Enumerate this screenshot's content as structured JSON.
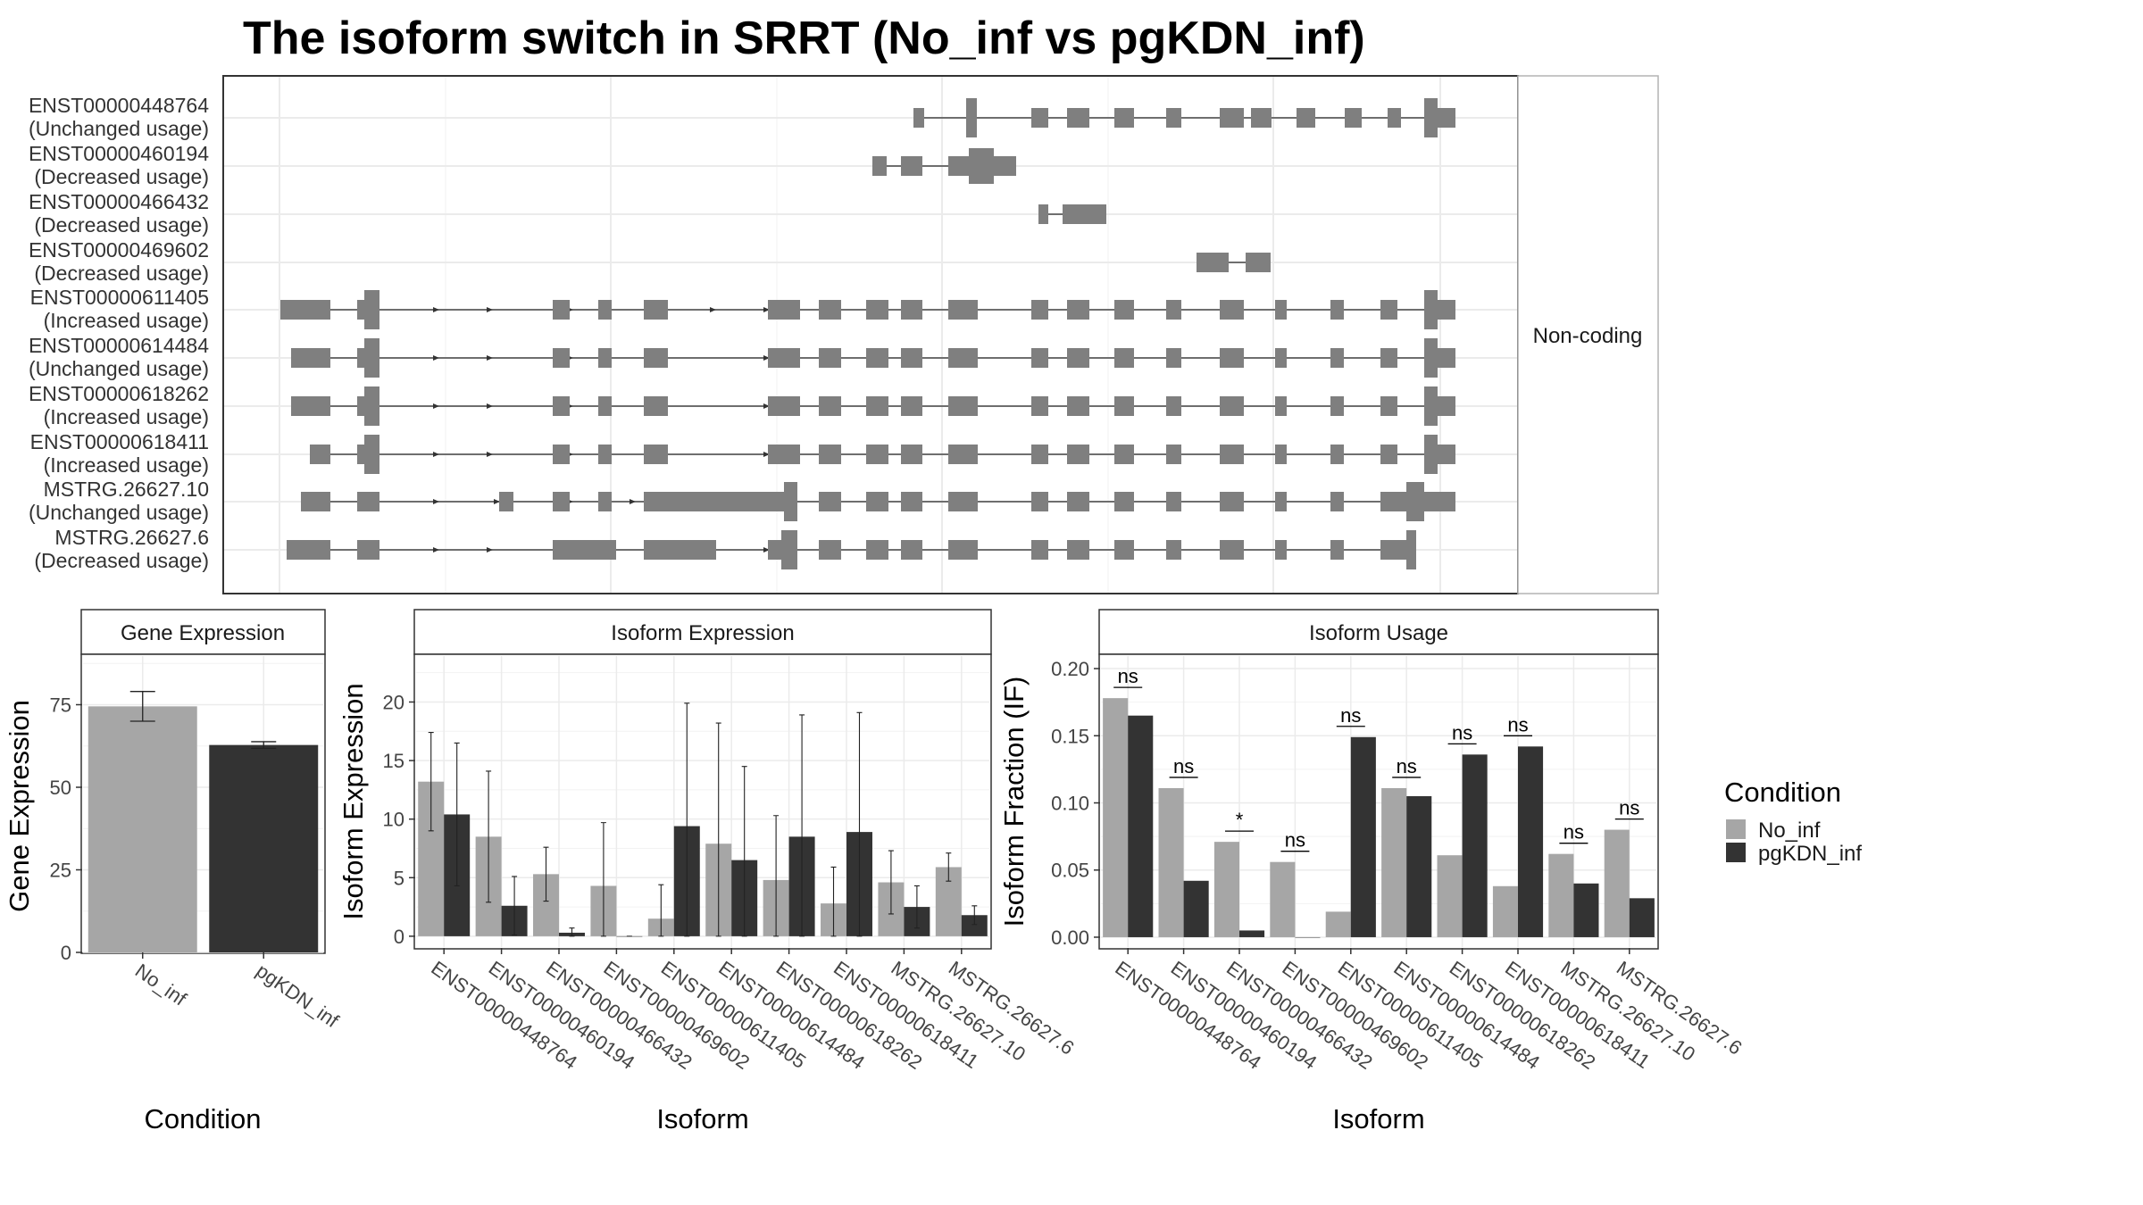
{
  "chart_data": [
    {
      "type": "gene-structure",
      "title": "The isoform switch in SRRT (No_inf vs pgKDN_inf)",
      "facet_label": "Non-coding",
      "isoforms": [
        {
          "id": "ENST00000448764",
          "usage": "(Unchanged usage)"
        },
        {
          "id": "ENST00000460194",
          "usage": "(Decreased usage)"
        },
        {
          "id": "ENST00000466432",
          "usage": "(Decreased usage)"
        },
        {
          "id": "ENST00000469602",
          "usage": "(Decreased usage)"
        },
        {
          "id": "ENST00000611405",
          "usage": "(Increased usage)"
        },
        {
          "id": "ENST00000614484",
          "usage": "(Unchanged usage)"
        },
        {
          "id": "ENST00000618262",
          "usage": "(Increased usage)"
        },
        {
          "id": "ENST00000618411",
          "usage": "(Increased usage)"
        },
        {
          "id": "MSTRG.26627.10",
          "usage": "(Unchanged usage)"
        },
        {
          "id": "MSTRG.26627.6",
          "usage": "(Decreased usage)"
        }
      ]
    },
    {
      "type": "bar",
      "title": "Gene Expression",
      "xlabel": "Condition",
      "ylabel": "Gene Expression",
      "categories": [
        "No_inf",
        "pgKDN_inf"
      ],
      "values": [
        74.5,
        62.8
      ],
      "errors": [
        4.5,
        1.0
      ],
      "ylim": [
        0,
        90
      ],
      "yticks": [
        "0",
        "25",
        "50",
        "75"
      ]
    },
    {
      "type": "bar",
      "title": "Isoform Expression",
      "xlabel": "Isoform",
      "ylabel": "Isoform Expression",
      "categories": [
        "ENST00000448764",
        "ENST00000460194",
        "ENST00000466432",
        "ENST00000469602",
        "ENST00000611405",
        "ENST00000614484",
        "ENST00000618262",
        "ENST00000618411",
        "MSTRG.26627.10",
        "MSTRG.26627.6"
      ],
      "series": [
        {
          "name": "No_inf",
          "values": [
            13.2,
            8.5,
            5.3,
            4.3,
            1.5,
            7.9,
            4.8,
            2.8,
            4.6,
            5.9
          ],
          "errors": [
            4.2,
            5.6,
            2.3,
            5.4,
            2.9,
            10.3,
            5.5,
            3.1,
            2.7,
            1.2
          ]
        },
        {
          "name": "pgKDN_inf",
          "values": [
            10.4,
            2.6,
            0.3,
            0.0,
            9.4,
            6.5,
            8.5,
            8.9,
            2.5,
            1.8
          ],
          "errors": [
            6.1,
            2.5,
            0.4,
            0.0,
            10.5,
            8.0,
            10.4,
            10.2,
            1.8,
            0.8
          ]
        }
      ],
      "ylim": [
        -1,
        24
      ],
      "yticks": [
        "0",
        "5",
        "10",
        "15",
        "20"
      ]
    },
    {
      "type": "bar",
      "title": "Isoform Usage",
      "xlabel": "Isoform",
      "ylabel": "Isoform Fraction (IF)",
      "categories": [
        "ENST00000448764",
        "ENST00000460194",
        "ENST00000466432",
        "ENST00000469602",
        "ENST00000611405",
        "ENST00000614484",
        "ENST00000618262",
        "ENST00000618411",
        "MSTRG.26627.10",
        "MSTRG.26627.6"
      ],
      "series": [
        {
          "name": "No_inf",
          "values": [
            0.178,
            0.111,
            0.071,
            0.056,
            0.019,
            0.111,
            0.061,
            0.038,
            0.062,
            0.08
          ]
        },
        {
          "name": "pgKDN_inf",
          "values": [
            0.165,
            0.042,
            0.005,
            0.0,
            0.149,
            0.105,
            0.136,
            0.142,
            0.04,
            0.029
          ]
        }
      ],
      "significance": [
        "ns",
        "ns",
        "*",
        "ns",
        "ns",
        "ns",
        "ns",
        "ns",
        "ns",
        "ns"
      ],
      "ylim": [
        -0.008,
        0.21
      ],
      "yticks": [
        "0.00",
        "0.05",
        "0.10",
        "0.15",
        "0.20"
      ]
    }
  ],
  "legend": {
    "title": "Condition",
    "items": [
      {
        "label": "No_inf",
        "color": "#a6a6a6"
      },
      {
        "label": "pgKDN_inf",
        "color": "#333333"
      }
    ]
  },
  "colors": {
    "exon": "#7f7f7f",
    "no_inf": "#a6a6a6",
    "pgkdn_inf": "#333333"
  }
}
